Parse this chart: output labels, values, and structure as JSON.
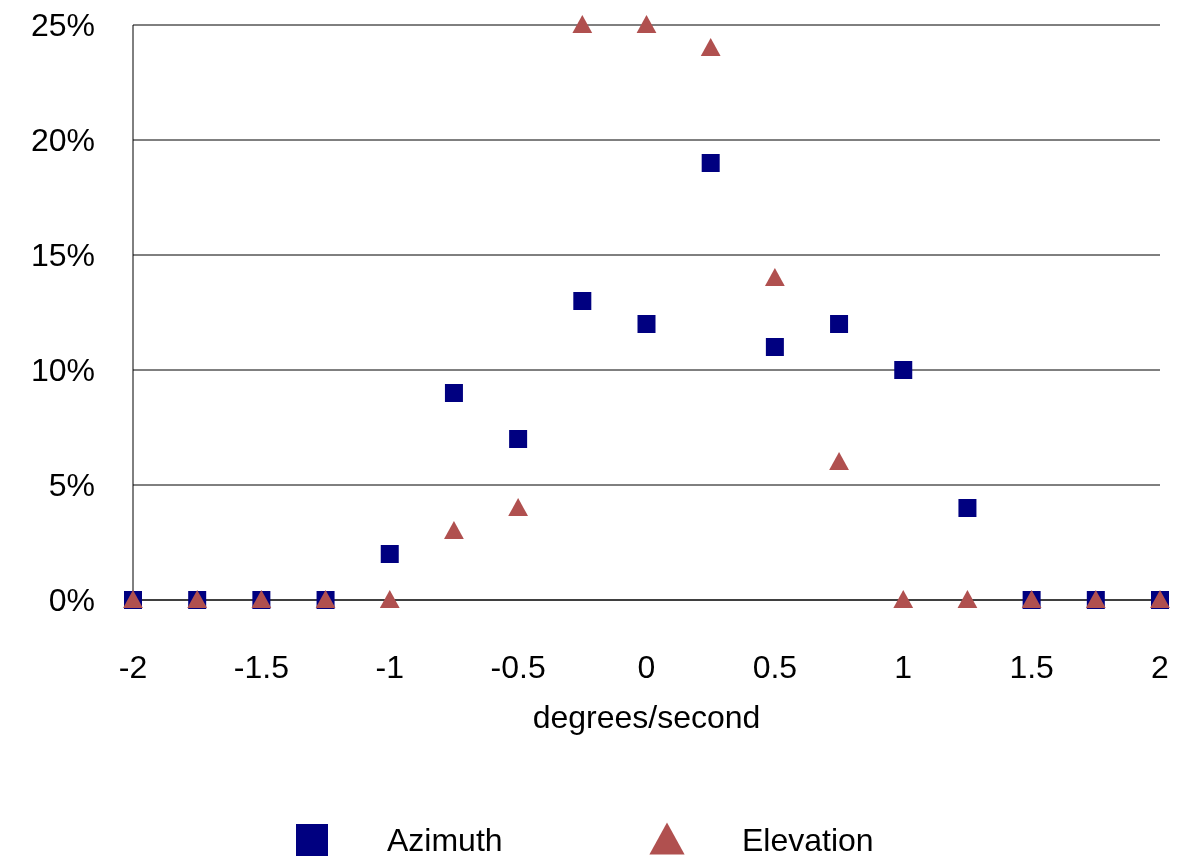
{
  "chart_data": {
    "type": "scatter",
    "xlabel": "degrees/second",
    "x": [
      -2,
      -1.75,
      -1.5,
      -1.25,
      -1,
      -0.75,
      -0.5,
      -0.25,
      0,
      0.25,
      0.5,
      0.75,
      1,
      1.25,
      1.5,
      1.75,
      2
    ],
    "series": [
      {
        "name": "Azimuth",
        "color": "#000080",
        "marker": "square",
        "values": [
          0,
          0,
          0,
          0,
          2,
          9,
          7,
          13,
          12,
          19,
          11,
          12,
          10,
          4,
          0,
          0,
          0
        ]
      },
      {
        "name": "Elevation",
        "color": "#b0504f",
        "marker": "triangle",
        "values": [
          0,
          0,
          0,
          0,
          0,
          3,
          4,
          25,
          25,
          24,
          14,
          6,
          0,
          0,
          0,
          0,
          0
        ]
      }
    ],
    "xlim": [
      -2,
      2
    ],
    "xticks": [
      -2,
      -1.5,
      -1,
      -0.5,
      0,
      0.5,
      1,
      1.5,
      2
    ],
    "ylim": [
      0,
      25
    ],
    "yticks": [
      {
        "value": 0,
        "label": "0%"
      },
      {
        "value": 5,
        "label": "5%"
      },
      {
        "value": 10,
        "label": "10%"
      },
      {
        "value": 15,
        "label": "15%"
      },
      {
        "value": 20,
        "label": "20%"
      },
      {
        "value": 25,
        "label": "25%"
      }
    ],
    "grid": "y",
    "legend": "bottom"
  }
}
